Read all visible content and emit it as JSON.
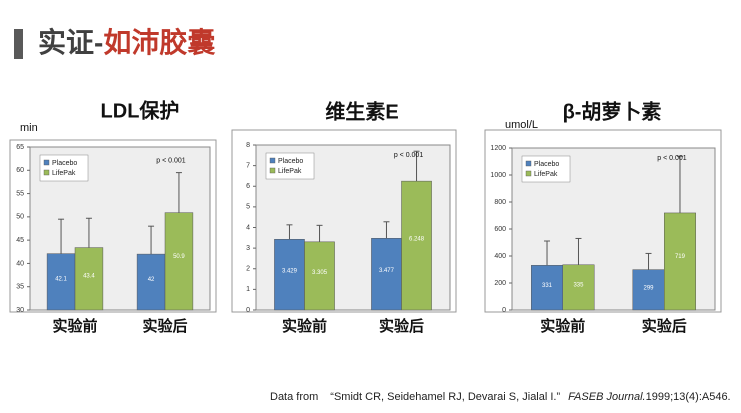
{
  "header": {
    "title_prefix": "实证-",
    "title_highlight": "如沛胶囊"
  },
  "chart_data": [
    {
      "type": "bar",
      "title": "LDL保护",
      "y_label": "min",
      "categories": [
        "实验前",
        "实验后"
      ],
      "series": [
        {
          "name": "Placebo",
          "color": "#4f81bd",
          "values": [
            42.1,
            42
          ],
          "errors": [
            7.4,
            6
          ]
        },
        {
          "name": "LifePak",
          "color": "#9bbb59",
          "values": [
            43.4,
            50.9
          ],
          "errors": [
            6.3,
            8.6
          ]
        }
      ],
      "ylim": [
        30,
        65
      ],
      "yticks": [
        30,
        35,
        40,
        45,
        50,
        55,
        60,
        65
      ],
      "annotation": "p < 0.001"
    },
    {
      "type": "bar",
      "title": "维生素E",
      "categories": [
        "实验前",
        "实验后"
      ],
      "series": [
        {
          "name": "Placebo",
          "color": "#4f81bd",
          "values": [
            3.429,
            3.477
          ],
          "errors": [
            0.7,
            0.8
          ]
        },
        {
          "name": "LifePak",
          "color": "#9bbb59",
          "values": [
            3.305,
            6.248
          ],
          "errors": [
            0.8,
            1.45
          ]
        }
      ],
      "ylim": [
        0,
        8
      ],
      "yticks": [
        0,
        1,
        2,
        3,
        4,
        5,
        6,
        7,
        8
      ],
      "annotation": "p < 0.001"
    },
    {
      "type": "bar",
      "title": "β-胡萝卜素",
      "y_label": "umol/L",
      "categories": [
        "实验前",
        "实验后"
      ],
      "series": [
        {
          "name": "Placebo",
          "color": "#4f81bd",
          "values": [
            331,
            299
          ],
          "errors": [
            180,
            120
          ]
        },
        {
          "name": "LifePak",
          "color": "#9bbb59",
          "values": [
            335,
            719
          ],
          "errors": [
            195,
            420
          ]
        }
      ],
      "ylim": [
        0,
        1200
      ],
      "yticks": [
        0,
        200,
        400,
        600,
        800,
        1000,
        1200
      ],
      "annotation": "p < 0.001"
    }
  ],
  "footer": {
    "prefix": "Data from",
    "authors": "“Smidt CR, Seidehamel RJ, Devarai S, Jialal I.”",
    "journal": "FASEB Journal.",
    "citation": "1999;13(4):A546."
  }
}
